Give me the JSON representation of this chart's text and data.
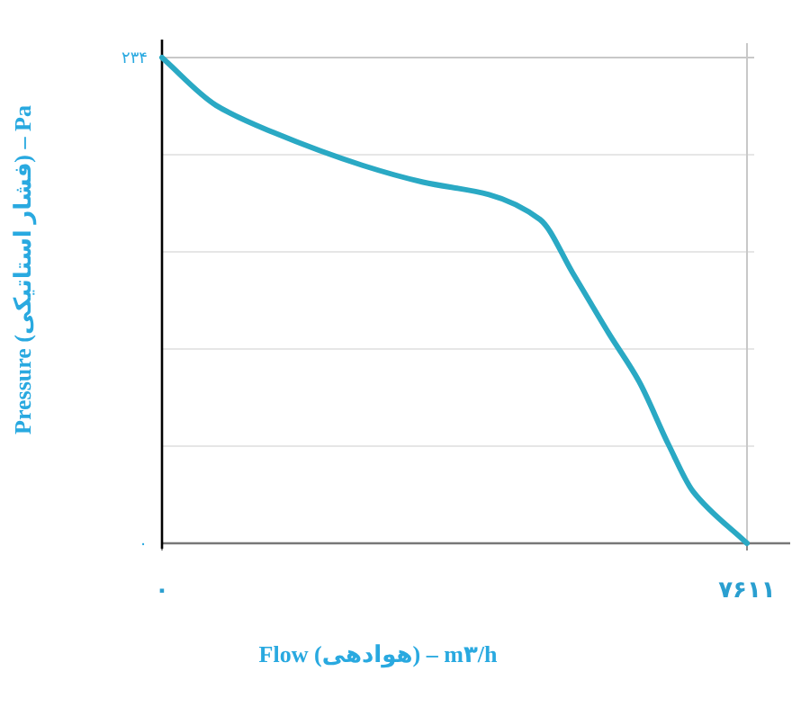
{
  "chart_data": {
    "type": "line",
    "xlabel": "Flow (هوادهی) – m۳/h",
    "ylabel": "Pressure (فشار استاتیکی) – Pa",
    "x": [
      0,
      703,
      1444,
      2615,
      3396,
      4255,
      4918,
      5347,
      5815,
      6206,
      6597,
      6909,
      7611
    ],
    "series": [
      {
        "color": "#2aa9c4",
        "values": [
          234,
          211,
          198,
          182,
          174,
          168,
          156,
          130,
          101,
          78,
          47,
          25,
          0
        ]
      }
    ],
    "xlim": [
      0,
      7611
    ],
    "ylim": [
      0,
      234
    ],
    "xticks": [
      {
        "value": 0,
        "label": "۰"
      },
      {
        "value": 7611,
        "label": "۷۶۱۱"
      }
    ],
    "yticks": [
      {
        "value": 0,
        "label": "۰"
      },
      {
        "value": 46.8,
        "label": null
      },
      {
        "value": 93.6,
        "label": null
      },
      {
        "value": 140.4,
        "label": null
      },
      {
        "value": 187.2,
        "label": null
      },
      {
        "value": 234,
        "label": "۲۳۴"
      }
    ],
    "grid": true,
    "marker": "none",
    "line_style": "solid"
  }
}
